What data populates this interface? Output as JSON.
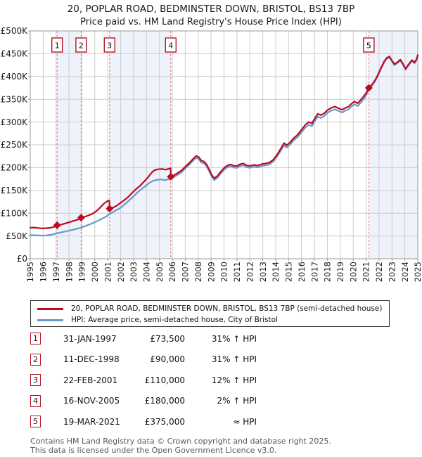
{
  "title": "20, POPLAR ROAD, BEDMINSTER DOWN, BRISTOL, BS13 7BP",
  "subtitle": "Price paid vs. HM Land Registry's House Price Index (HPI)",
  "legend": [
    {
      "label": "20, POPLAR ROAD, BEDMINSTER DOWN, BRISTOL, BS13 7BP (semi-detached house)",
      "color": "#bf0a1e"
    },
    {
      "label": "HPI: Average price, semi-detached house, City of Bristol",
      "color": "#6699cc"
    }
  ],
  "sales": [
    {
      "num": "1",
      "date": "31-JAN-1997",
      "price": "£73,500",
      "hpi": "31% ↑ HPI",
      "year": 1997.08,
      "value": 73.5
    },
    {
      "num": "2",
      "date": "11-DEC-1998",
      "price": "£90,000",
      "hpi": "31% ↑ HPI",
      "year": 1998.94,
      "value": 90
    },
    {
      "num": "3",
      "date": "22-FEB-2001",
      "price": "£110,000",
      "hpi": "12% ↑ HPI",
      "year": 2001.14,
      "value": 110
    },
    {
      "num": "4",
      "date": "16-NOV-2005",
      "price": "£180,000",
      "hpi": "2% ↑ HPI",
      "year": 2005.88,
      "value": 180
    },
    {
      "num": "5",
      "date": "19-MAR-2021",
      "price": "£375,000",
      "hpi": "≈ HPI",
      "year": 2021.21,
      "value": 375
    }
  ],
  "footer": {
    "line1": "Contains HM Land Registry data © Crown copyright and database right 2025.",
    "line2": "This data is licensed under the Open Government Licence v3.0."
  },
  "colors": {
    "red": "#bf0a1e",
    "blue": "#6699cc",
    "band": "#eef2fb",
    "dashed": "#e57373",
    "grid": "#cccccc",
    "frame": "#999999",
    "box_border": "#bb1122",
    "text": "#1a1a1a",
    "footer": "#595959"
  },
  "chart_data": {
    "type": "line",
    "x_range": [
      1995,
      2025
    ],
    "y_range": [
      0,
      500
    ],
    "y_unit": "£K (GBP thousands)",
    "x_ticks": [
      1995,
      1996,
      1997,
      1998,
      1999,
      2000,
      2001,
      2002,
      2003,
      2004,
      2005,
      2006,
      2007,
      2008,
      2009,
      2010,
      2011,
      2012,
      2013,
      2014,
      2015,
      2016,
      2017,
      2018,
      2019,
      2020,
      2021,
      2022,
      2023,
      2024,
      2025
    ],
    "y_ticks": [
      {
        "v": 0,
        "label": "£0"
      },
      {
        "v": 50,
        "label": "£50K"
      },
      {
        "v": 100,
        "label": "£100K"
      },
      {
        "v": 150,
        "label": "£150K"
      },
      {
        "v": 200,
        "label": "£200K"
      },
      {
        "v": 250,
        "label": "£250K"
      },
      {
        "v": 300,
        "label": "£300K"
      },
      {
        "v": 350,
        "label": "£350K"
      },
      {
        "v": 400,
        "label": "£400K"
      },
      {
        "v": 450,
        "label": "£450K"
      },
      {
        "v": 500,
        "label": "£500K"
      }
    ],
    "ownership_bands": [
      [
        1997.08,
        1998.94
      ],
      [
        2001.14,
        2005.88
      ],
      [
        2021.21,
        2025
      ]
    ],
    "series": [
      {
        "name": "hpi-average",
        "color": "#6699cc",
        "points": [
          [
            1995,
            52
          ],
          [
            1995.4,
            51.5
          ],
          [
            1995.8,
            51
          ],
          [
            1996.2,
            51
          ],
          [
            1996.6,
            52.5
          ],
          [
            1997.08,
            56
          ],
          [
            1997.5,
            58.5
          ],
          [
            1998,
            61.5
          ],
          [
            1998.5,
            65
          ],
          [
            1998.94,
            68.5
          ],
          [
            1999.3,
            72
          ],
          [
            1999.7,
            76.5
          ],
          [
            2000.1,
            81.5
          ],
          [
            2000.5,
            87
          ],
          [
            2000.9,
            93
          ],
          [
            2001.14,
            98
          ],
          [
            2001.5,
            104
          ],
          [
            2002,
            112
          ],
          [
            2002.5,
            124
          ],
          [
            2003,
            137
          ],
          [
            2003.4,
            148
          ],
          [
            2003.8,
            157
          ],
          [
            2004.2,
            166
          ],
          [
            2004.5,
            171
          ],
          [
            2004.8,
            173
          ],
          [
            2005.1,
            174
          ],
          [
            2005.4,
            172.5
          ],
          [
            2005.7,
            174.5
          ],
          [
            2005.88,
            176
          ],
          [
            2006.1,
            179
          ],
          [
            2006.4,
            184
          ],
          [
            2006.7,
            189.5
          ],
          [
            2007,
            198
          ],
          [
            2007.3,
            206
          ],
          [
            2007.6,
            215
          ],
          [
            2007.85,
            221.5
          ],
          [
            2008.05,
            218.5
          ],
          [
            2008.25,
            211
          ],
          [
            2008.45,
            209.5
          ],
          [
            2008.65,
            203
          ],
          [
            2008.85,
            192
          ],
          [
            2009.05,
            180
          ],
          [
            2009.25,
            172.5
          ],
          [
            2009.5,
            178
          ],
          [
            2009.75,
            187
          ],
          [
            2010,
            195
          ],
          [
            2010.25,
            200.5
          ],
          [
            2010.5,
            203
          ],
          [
            2010.75,
            200
          ],
          [
            2011,
            199.5
          ],
          [
            2011.25,
            203.5
          ],
          [
            2011.5,
            205
          ],
          [
            2011.75,
            201
          ],
          [
            2012,
            199.5
          ],
          [
            2012.3,
            202
          ],
          [
            2012.6,
            200.5
          ],
          [
            2012.9,
            203.5
          ],
          [
            2013.2,
            205
          ],
          [
            2013.5,
            207
          ],
          [
            2013.8,
            213
          ],
          [
            2014.1,
            224
          ],
          [
            2014.4,
            237
          ],
          [
            2014.65,
            249
          ],
          [
            2014.85,
            244
          ],
          [
            2015.1,
            250
          ],
          [
            2015.4,
            260
          ],
          [
            2015.7,
            267
          ],
          [
            2016,
            278
          ],
          [
            2016.3,
            288
          ],
          [
            2016.55,
            294
          ],
          [
            2016.8,
            291
          ],
          [
            2017.05,
            303
          ],
          [
            2017.25,
            312
          ],
          [
            2017.5,
            309
          ],
          [
            2017.75,
            313
          ],
          [
            2018,
            320
          ],
          [
            2018.3,
            325
          ],
          [
            2018.6,
            328
          ],
          [
            2018.9,
            324
          ],
          [
            2019.15,
            321
          ],
          [
            2019.4,
            325
          ],
          [
            2019.65,
            328
          ],
          [
            2019.9,
            335
          ],
          [
            2020.1,
            339
          ],
          [
            2020.35,
            335
          ],
          [
            2020.6,
            343
          ],
          [
            2020.85,
            352
          ],
          [
            2021.05,
            361
          ],
          [
            2021.21,
            375
          ],
          [
            2021.45,
            380
          ],
          [
            2021.7,
            390
          ],
          [
            2021.95,
            404
          ],
          [
            2022.15,
            417
          ],
          [
            2022.4,
            431
          ],
          [
            2022.6,
            439
          ],
          [
            2022.8,
            442
          ],
          [
            2023,
            433
          ],
          [
            2023.2,
            425
          ],
          [
            2023.45,
            430
          ],
          [
            2023.65,
            435
          ],
          [
            2023.85,
            426
          ],
          [
            2024.05,
            415
          ],
          [
            2024.3,
            425
          ],
          [
            2024.55,
            434
          ],
          [
            2024.75,
            429
          ],
          [
            2024.9,
            436
          ],
          [
            2025,
            445
          ]
        ]
      },
      {
        "name": "price-paid",
        "color": "#bf0a1e",
        "points": [
          [
            1995,
            68
          ],
          [
            1995.3,
            68.5
          ],
          [
            1995.6,
            67.5
          ],
          [
            1995.9,
            66.5
          ],
          [
            1996.2,
            67
          ],
          [
            1996.6,
            68
          ],
          [
            1996.9,
            70.5
          ],
          [
            1997.08,
            73.5
          ],
          [
            1997.4,
            75
          ],
          [
            1997.7,
            77.5
          ],
          [
            1998,
            80
          ],
          [
            1998.4,
            83.5
          ],
          [
            1998.7,
            86
          ],
          [
            1998.94,
            90
          ],
          [
            1999.2,
            92
          ],
          [
            1999.5,
            95
          ],
          [
            1999.8,
            98.5
          ],
          [
            2000.1,
            104
          ],
          [
            2000.4,
            112
          ],
          [
            2000.7,
            121
          ],
          [
            2001,
            127
          ],
          [
            2001.13,
            127.5
          ],
          [
            2001.14,
            110
          ],
          [
            2001.4,
            112
          ],
          [
            2001.7,
            116.5
          ],
          [
            2002,
            123
          ],
          [
            2002.3,
            129
          ],
          [
            2002.6,
            136
          ],
          [
            2002.9,
            145
          ],
          [
            2003.2,
            153
          ],
          [
            2003.5,
            160
          ],
          [
            2003.8,
            169
          ],
          [
            2004.1,
            178
          ],
          [
            2004.4,
            189
          ],
          [
            2004.6,
            194
          ],
          [
            2004.9,
            196.5
          ],
          [
            2005.2,
            197
          ],
          [
            2005.5,
            195.5
          ],
          [
            2005.7,
            197.5
          ],
          [
            2005.87,
            198.5
          ],
          [
            2005.88,
            180
          ],
          [
            2006.1,
            183
          ],
          [
            2006.4,
            188
          ],
          [
            2006.7,
            193.5
          ],
          [
            2007,
            202
          ],
          [
            2007.3,
            210
          ],
          [
            2007.6,
            219
          ],
          [
            2007.85,
            226
          ],
          [
            2008.05,
            223
          ],
          [
            2008.25,
            215
          ],
          [
            2008.45,
            213.5
          ],
          [
            2008.65,
            207
          ],
          [
            2008.85,
            196
          ],
          [
            2009.05,
            184
          ],
          [
            2009.25,
            176.5
          ],
          [
            2009.5,
            182
          ],
          [
            2009.75,
            191
          ],
          [
            2010,
            199
          ],
          [
            2010.25,
            204.5
          ],
          [
            2010.5,
            207
          ],
          [
            2010.75,
            204
          ],
          [
            2011,
            203.5
          ],
          [
            2011.25,
            207.5
          ],
          [
            2011.5,
            209
          ],
          [
            2011.75,
            205
          ],
          [
            2012,
            203.5
          ],
          [
            2012.3,
            206
          ],
          [
            2012.6,
            204.5
          ],
          [
            2012.9,
            207.5
          ],
          [
            2013.2,
            209
          ],
          [
            2013.5,
            211
          ],
          [
            2013.8,
            217
          ],
          [
            2014.1,
            228
          ],
          [
            2014.4,
            242
          ],
          [
            2014.65,
            254
          ],
          [
            2014.85,
            249
          ],
          [
            2015.1,
            255
          ],
          [
            2015.4,
            265
          ],
          [
            2015.7,
            272
          ],
          [
            2016,
            283
          ],
          [
            2016.3,
            294
          ],
          [
            2016.55,
            300
          ],
          [
            2016.8,
            297
          ],
          [
            2017.05,
            309
          ],
          [
            2017.25,
            318
          ],
          [
            2017.5,
            315
          ],
          [
            2017.75,
            319
          ],
          [
            2018,
            326
          ],
          [
            2018.3,
            331
          ],
          [
            2018.6,
            334
          ],
          [
            2018.9,
            330
          ],
          [
            2019.15,
            327
          ],
          [
            2019.4,
            331
          ],
          [
            2019.65,
            334
          ],
          [
            2019.9,
            341
          ],
          [
            2020.1,
            345
          ],
          [
            2020.35,
            341
          ],
          [
            2020.6,
            349
          ],
          [
            2020.85,
            358
          ],
          [
            2021.05,
            366
          ],
          [
            2021.21,
            375
          ],
          [
            2021.45,
            382
          ],
          [
            2021.7,
            392
          ],
          [
            2021.95,
            406
          ],
          [
            2022.15,
            419
          ],
          [
            2022.4,
            433
          ],
          [
            2022.6,
            441
          ],
          [
            2022.8,
            444
          ],
          [
            2023,
            435
          ],
          [
            2023.2,
            427
          ],
          [
            2023.45,
            432
          ],
          [
            2023.65,
            437
          ],
          [
            2023.85,
            428
          ],
          [
            2024.05,
            417
          ],
          [
            2024.3,
            427
          ],
          [
            2024.55,
            436
          ],
          [
            2024.75,
            431
          ],
          [
            2024.9,
            438
          ],
          [
            2025,
            447
          ]
        ]
      }
    ]
  }
}
